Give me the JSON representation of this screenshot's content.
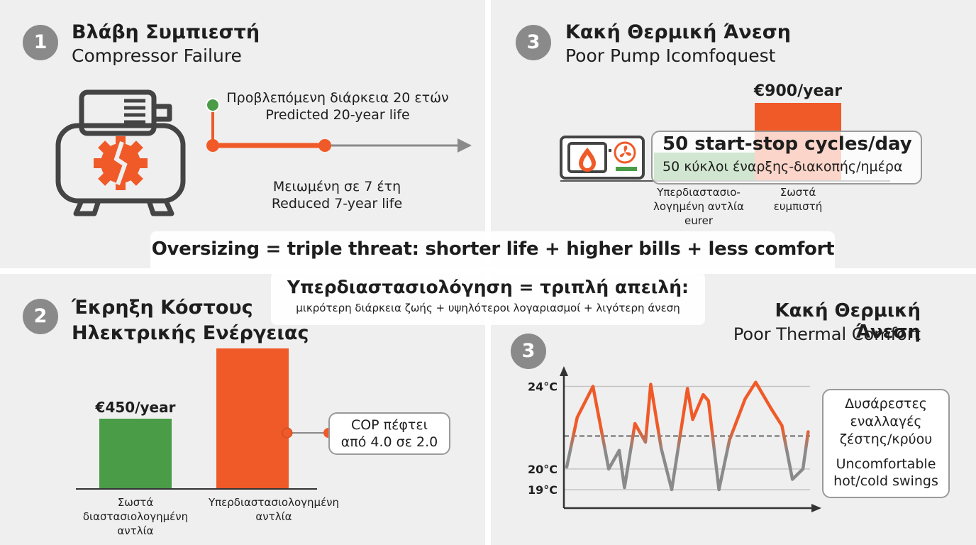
{
  "colors": {
    "orange": "#f05a28",
    "green": "#4a9c47",
    "grey": "#8a8a8a",
    "panel": "#efefef"
  },
  "panel1": {
    "number": "1",
    "title": "Βλάβη Συμπιεστή",
    "subtitle": "Compressor Failure",
    "icon": "compressor-icon",
    "predicted_gr": "Προβλεπόμενη διάρκεια 20 ετών",
    "predicted_en": "Predicted 20-year life",
    "reduced_gr": "Μειωμένη σε 7 έτη",
    "reduced_en": "Reduced 7-year life"
  },
  "panel2": {
    "number": "2",
    "title_line1": "Έκρηξη Κόστους",
    "title_line2": "Ηλεκτρικής Ενέργειας",
    "cop_line1": "COP πέφτει",
    "cop_line2": "από 4.0 σε 2.0"
  },
  "panel3a": {
    "number": "3",
    "title": "Κακή Θερμική Άνεση",
    "subtitle": "Poor Pump Icomfoquest",
    "bar_label": "€900/year",
    "cycles_en": "50 start-stop cycles/day",
    "cycles_gr": "50 κύκλοι έναρξης-διακοπής/ημέρα",
    "label_over_l1": "Υπερδιαστασιο-",
    "label_over_l2": "λογημένη αντλία",
    "label_over_l3": "eurer",
    "label_correct_l1": "Σωστά",
    "label_correct_l2": "ευμπιστή",
    "icon": "heat-pump-unit-icon"
  },
  "panel3b": {
    "number": "3",
    "title": "Κακή Θερμική Άνεση",
    "subtitle": "Poor Thermal Comfort",
    "note_gr_l1": "Δυσάρεστες",
    "note_gr_l2": "εναλλαγές",
    "note_gr_l3": "ζέστης/κρύου",
    "note_en_l1": "Uncomfortable",
    "note_en_l2": "hot/cold swings"
  },
  "banner": {
    "en": "Oversizing = triple threat: shorter life + higher bills + less comfort",
    "gr": "Υπερδιαστασιολόγηση = τριπλή απειλή:",
    "gr_sub": "μικρότερη διάρκεια ζωής + υψηλότεροι λογαριασμοί + λιγότερη άνεση"
  },
  "chart_data": [
    {
      "type": "bar",
      "categories": [
        "Σωστά διαστασιολογημένη αντλία",
        "Υπερδιαστασιολογημένη αντλία"
      ],
      "values": [
        450,
        900
      ],
      "value_labels": [
        "€450/year",
        "€900/year"
      ],
      "category_lines": [
        [
          "Σωστά",
          "διαστασιολογημένη",
          "αντλία"
        ],
        [
          "Υπερδιαστασιολογημένη",
          "αντλία"
        ]
      ],
      "ylim": [
        0,
        1000
      ]
    },
    {
      "type": "line",
      "yticks": [
        19,
        20,
        24
      ],
      "ytick_labels": [
        "19°C",
        "20°C",
        "24°C"
      ],
      "ylim": [
        18.5,
        25.5
      ],
      "setpoint": 21.6,
      "x": [
        0,
        2,
        5,
        8,
        10,
        11,
        13,
        15,
        16,
        18,
        20,
        23,
        24,
        26,
        27,
        29,
        31,
        34,
        36,
        39,
        41,
        43,
        45,
        46
      ],
      "y": [
        20.1,
        22.5,
        24.0,
        20.0,
        20.9,
        19.1,
        22.2,
        21.3,
        24.1,
        21.0,
        19.0,
        23.9,
        22.4,
        23.6,
        23.3,
        19.0,
        21.4,
        23.4,
        24.2,
        22.9,
        22.1,
        19.5,
        20.0,
        21.8
      ]
    }
  ]
}
